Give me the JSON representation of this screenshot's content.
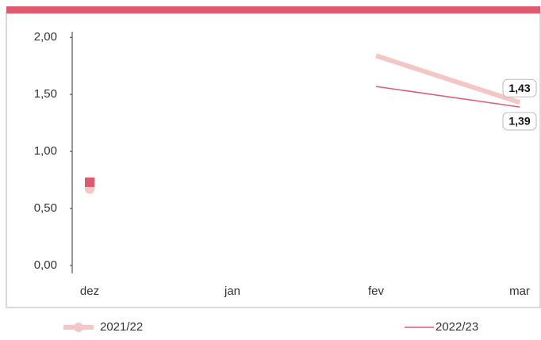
{
  "chart_data": {
    "type": "line",
    "categories": [
      "dez",
      "jan",
      "fev",
      "mar"
    ],
    "series": [
      {
        "name": "2021/22",
        "color": "#f4c7c6",
        "values": [
          0.67,
          null,
          1.84,
          1.43
        ],
        "value_labels": [
          null,
          null,
          null,
          "1,43"
        ]
      },
      {
        "name": "2022/23",
        "color": "#e05a6d",
        "values": [
          0.73,
          null,
          1.57,
          1.39
        ],
        "value_labels": [
          null,
          null,
          null,
          "1,39"
        ]
      }
    ],
    "ylim": [
      0,
      2.05
    ],
    "yticks": [
      {
        "value": 0,
        "label": "0,00"
      },
      {
        "value": 0.5,
        "label": "0,50"
      },
      {
        "value": 1,
        "label": "1,00"
      },
      {
        "value": 1.5,
        "label": "1,50"
      },
      {
        "value": 2,
        "label": "2,00"
      }
    ],
    "accent_color": "#e05a6d"
  }
}
